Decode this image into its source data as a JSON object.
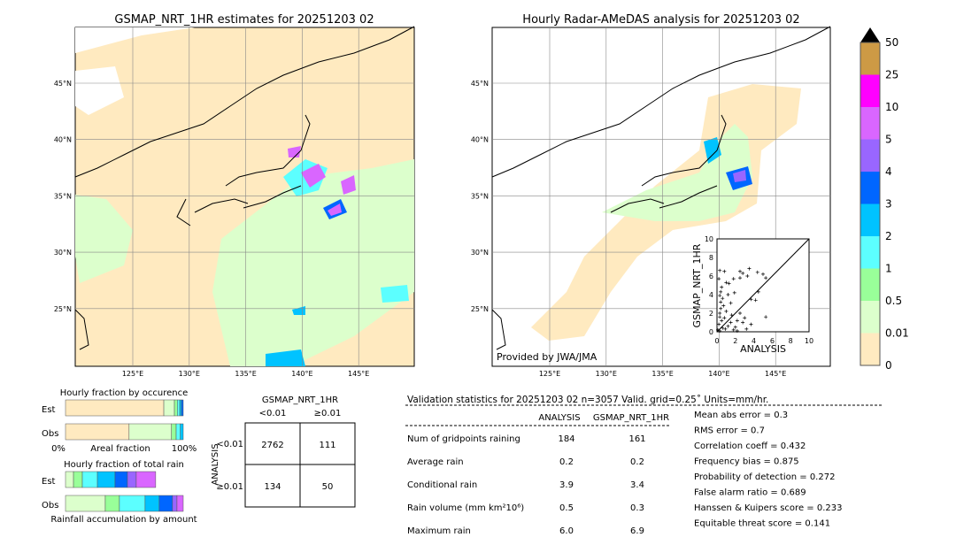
{
  "left_map": {
    "title": "GSMAP_NRT_1HR estimates for 20251203 02",
    "lon_ticks": [
      "125°E",
      "130°E",
      "135°E",
      "140°E",
      "145°E"
    ],
    "lat_ticks": [
      "45°N",
      "40°N",
      "35°N",
      "30°N",
      "25°N"
    ]
  },
  "right_map": {
    "title": "Hourly Radar-AMeDAS analysis for 20251203 02",
    "lon_ticks": [
      "125°E",
      "130°E",
      "135°E",
      "140°E",
      "145°E"
    ],
    "lat_ticks": [
      "45°N",
      "40°N",
      "35°N",
      "30°N",
      "25°N"
    ],
    "credit": "Provided by JWA/JMA"
  },
  "colorbar": {
    "labels": [
      "50",
      "25",
      "10",
      "5",
      "4",
      "3",
      "2",
      "1",
      "0.5",
      "0.01",
      "0"
    ],
    "colors": [
      "#cd9a45",
      "#ff00ff",
      "#d966ff",
      "#9966ff",
      "#0066ff",
      "#00c3ff",
      "#5cffff",
      "#99ff99",
      "#dcffcc",
      "#ffeac0"
    ],
    "extend_color": "#000000"
  },
  "chart_data": [
    {
      "type": "scatter",
      "xlabel": "ANALYSIS",
      "ylabel": "GSMAP_NRT_1HR",
      "xlim": [
        0,
        10
      ],
      "ylim": [
        0,
        10
      ],
      "ticks": [
        "0",
        "2",
        "4",
        "6",
        "8",
        "10"
      ],
      "points": [
        [
          0.3,
          6.6
        ],
        [
          0.8,
          6.5
        ],
        [
          0.2,
          5.7
        ],
        [
          1.0,
          5.3
        ],
        [
          1.3,
          5.2
        ],
        [
          0.5,
          4.8
        ],
        [
          0.4,
          4.3
        ],
        [
          0.3,
          3.9
        ],
        [
          0.6,
          3.6
        ],
        [
          1.2,
          4.0
        ],
        [
          1.5,
          3.1
        ],
        [
          1.9,
          4.2
        ],
        [
          2.5,
          6.5
        ],
        [
          2.8,
          6.3
        ],
        [
          3.5,
          6.8
        ],
        [
          4.4,
          6.4
        ],
        [
          5.0,
          6.2
        ],
        [
          5.3,
          5.8
        ],
        [
          2.5,
          5.8
        ],
        [
          1.8,
          5.7
        ],
        [
          3.3,
          6.0
        ],
        [
          4.5,
          4.3
        ],
        [
          3.7,
          3.5
        ],
        [
          4.2,
          3.4
        ],
        [
          5.3,
          1.6
        ],
        [
          2.5,
          2.0
        ],
        [
          3.0,
          1.5
        ],
        [
          3.7,
          0.8
        ],
        [
          2.8,
          1.0
        ],
        [
          2.0,
          0.5
        ],
        [
          1.5,
          1.0
        ],
        [
          1.0,
          2.2
        ],
        [
          0.7,
          2.8
        ],
        [
          0.4,
          2.5
        ],
        [
          0.3,
          1.6
        ],
        [
          0.5,
          1.2
        ],
        [
          0.2,
          0.8
        ],
        [
          0.6,
          0.4
        ],
        [
          0.9,
          0.3
        ],
        [
          1.2,
          0.6
        ],
        [
          0.1,
          0.2
        ],
        [
          0.3,
          0.1
        ],
        [
          1.8,
          0.2
        ],
        [
          2.2,
          0.1
        ],
        [
          3.2,
          0.3
        ],
        [
          0.4,
          3.2
        ],
        [
          0.3,
          2.0
        ],
        [
          1.6,
          1.8
        ],
        [
          2.2,
          1.2
        ],
        [
          0.8,
          1.5
        ]
      ]
    },
    {
      "type": "bar",
      "title": "Hourly fraction by occurence",
      "xlabel": "Areal fraction",
      "x_ticks": [
        "0%",
        "100%"
      ],
      "categories": [
        "Est",
        "Obs"
      ],
      "series": [
        {
          "label": "Est",
          "fractions": [
            0.835,
            0.09,
            0.025,
            0.02,
            0.015,
            0.015
          ]
        },
        {
          "label": "Obs",
          "fractions": [
            0.54,
            0.36,
            0.04,
            0.035,
            0.025,
            0.0
          ]
        }
      ]
    },
    {
      "type": "bar",
      "title": "Hourly fraction of total rain",
      "xlabel": "Rainfall accumulation by amount",
      "categories": [
        "Est",
        "Obs"
      ],
      "series": [
        {
          "label": "Est",
          "fractions": [
            0.068,
            0.075,
            0.128,
            0.15,
            0.105,
            0.075,
            0.165
          ]
        },
        {
          "label": "Obs",
          "fractions": [
            0.338,
            0.12,
            0.218,
            0.12,
            0.113,
            0.038,
            0.053
          ]
        }
      ]
    },
    {
      "type": "table",
      "title": "GSMAP_NRT_1HR",
      "col_headers": [
        "<0.01",
        "≥0.01"
      ],
      "row_label": "ANALYSIS",
      "row_headers": [
        "<0.01",
        "≥0.01"
      ],
      "cells": [
        [
          "2762",
          "111"
        ],
        [
          "134",
          "50"
        ]
      ]
    }
  ],
  "stats": {
    "header": "Validation statistics for 20251203 02  n=3057 Valid. grid=0.25˚ Units=mm/hr.",
    "columns": [
      "ANALYSIS",
      "GSMAP_NRT_1HR"
    ],
    "rows": [
      {
        "label": "Num of gridpoints raining",
        "a": "184",
        "g": "161"
      },
      {
        "label": "Average rain",
        "a": "0.2",
        "g": "0.2"
      },
      {
        "label": "Conditional rain",
        "a": "3.9",
        "g": "3.4"
      },
      {
        "label": "Rain volume (mm km²10⁶)",
        "a": "0.5",
        "g": "0.3"
      },
      {
        "label": "Maximum rain",
        "a": "6.0",
        "g": "6.9"
      }
    ],
    "scores": [
      "Mean abs error =    0.3",
      "RMS error =    0.7",
      "Correlation coeff =  0.432",
      "Frequency bias =  0.875",
      "Probability of detection =  0.272",
      "False alarm ratio =  0.689",
      "Hanssen & Kuipers score =  0.233",
      "Equitable threat score =  0.141"
    ]
  }
}
